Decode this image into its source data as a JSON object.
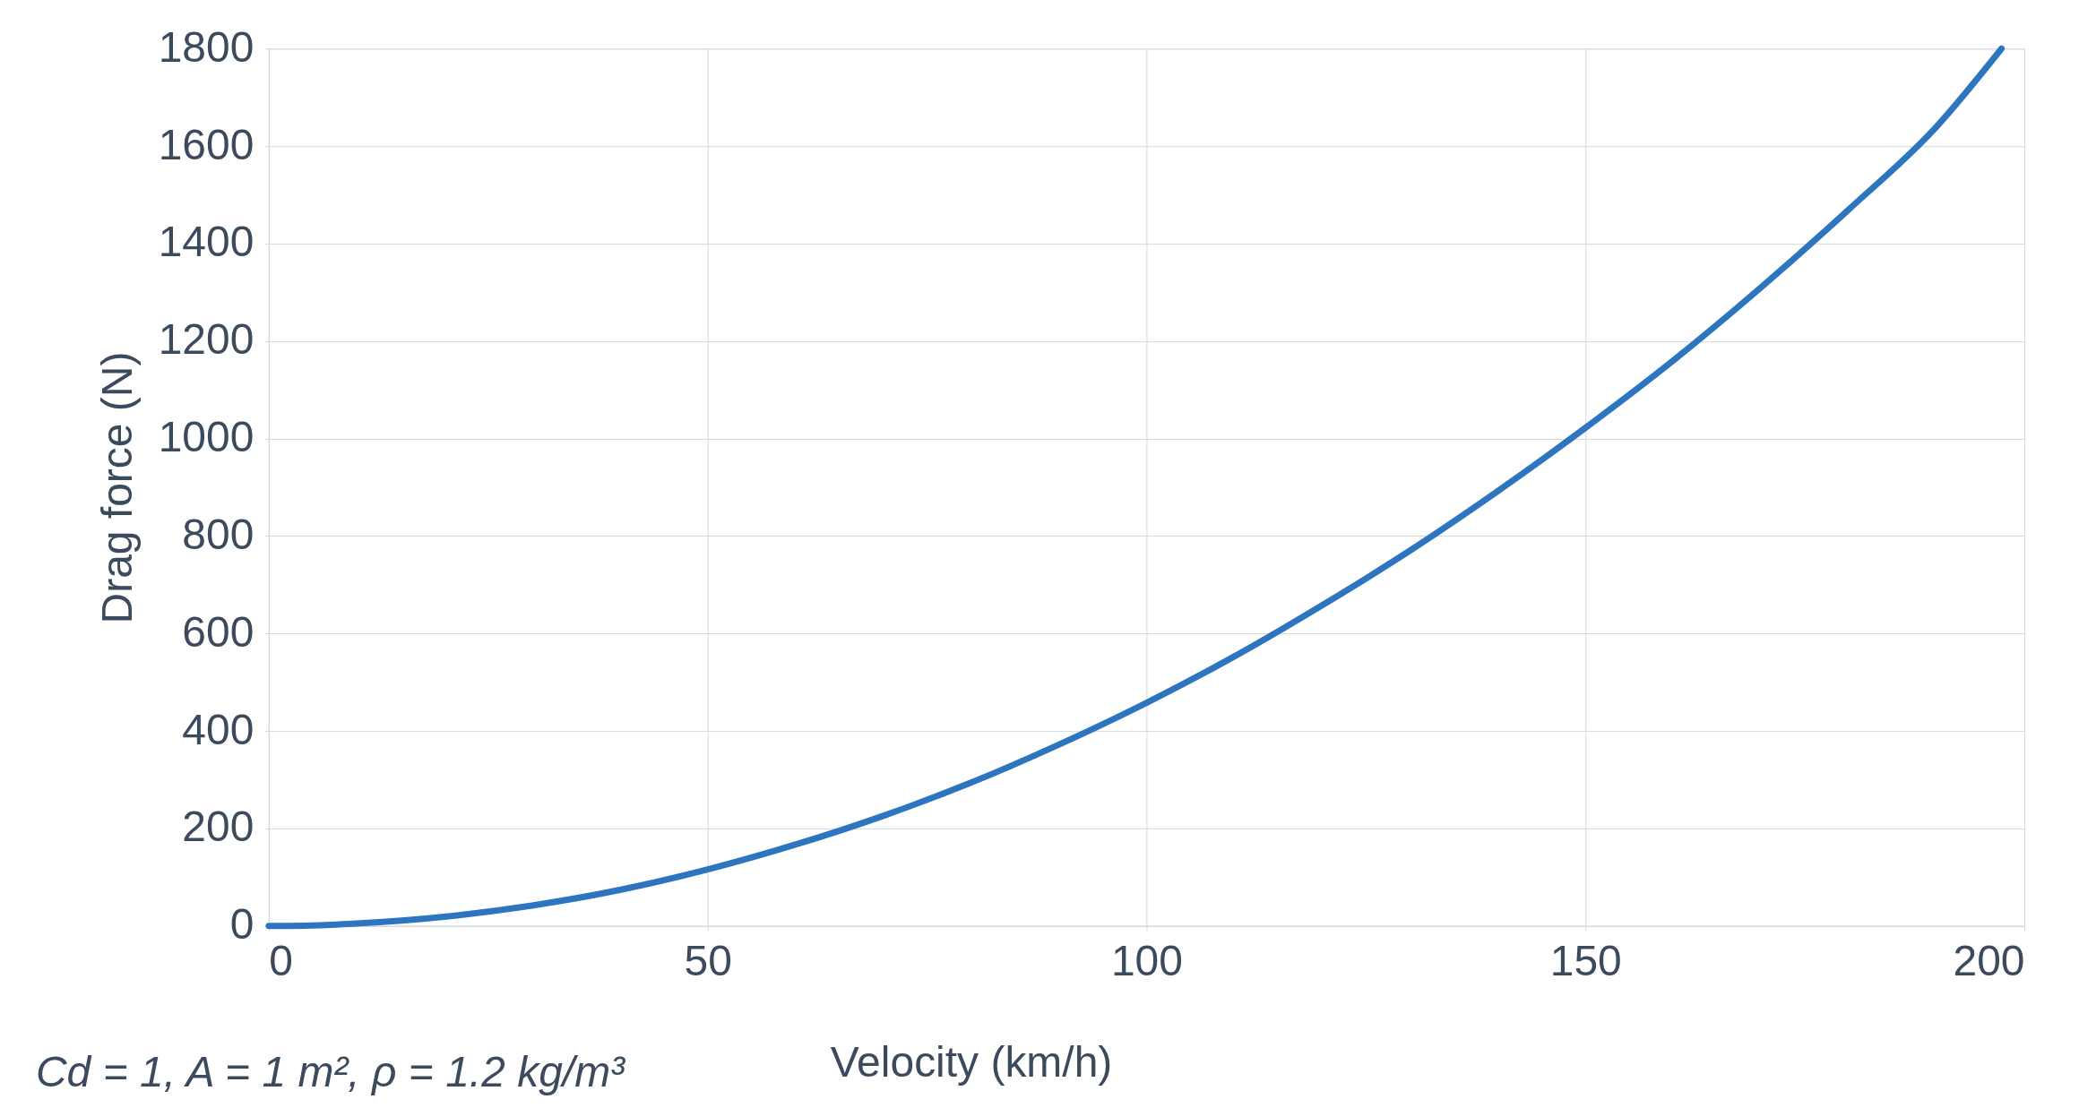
{
  "chart_data": {
    "type": "line",
    "xlabel": "Velocity (km/h)",
    "ylabel": "Drag force (N)",
    "annotations": [
      "Cd = 1, A = 1 m², ρ = 1.2 kg/m³"
    ],
    "x": [
      0,
      5,
      10,
      20,
      30,
      40,
      50,
      60,
      70,
      80,
      90,
      100,
      110,
      120,
      130,
      140,
      150,
      160,
      170,
      180,
      190,
      197.4
    ],
    "series": [
      {
        "color": "#2e75c0",
        "values": [
          0,
          1,
          5,
          19,
          42,
          74,
          116,
          167,
          226,
          294,
          372,
          458,
          553,
          658,
          770,
          892,
          1022,
          1160,
          1310,
          1470,
          1640,
          1800
        ]
      }
    ],
    "xlim": [
      0,
      200
    ],
    "xticks": [
      0,
      50,
      100,
      150,
      200
    ],
    "ylim": [
      0,
      1800
    ],
    "yticks": [
      0,
      200,
      400,
      600,
      800,
      1000,
      1200,
      1400,
      1600,
      1800
    ],
    "grid": true,
    "line_style": "solid",
    "marker": "none"
  }
}
